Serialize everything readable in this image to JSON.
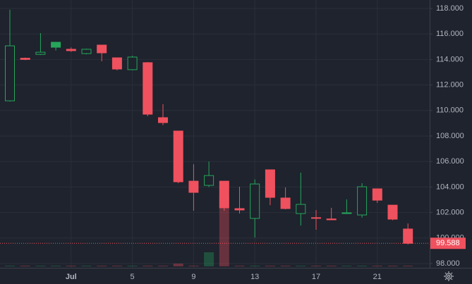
{
  "chart_data": {
    "type": "candlestick",
    "categories": [
      null,
      null,
      null,
      null,
      "Jul",
      null,
      null,
      null,
      "5",
      null,
      null,
      null,
      "9",
      null,
      null,
      null,
      "13",
      null,
      null,
      null,
      "17",
      null,
      null,
      null,
      "21",
      null,
      null
    ],
    "open": [
      110.76,
      114.1,
      114.4,
      115.35,
      114.8,
      114.46,
      115.13,
      114.13,
      113.2,
      113.75,
      109.44,
      108.39,
      104.46,
      104.13,
      104.46,
      102.31,
      101.54,
      105.35,
      103.14,
      101.92,
      101.6,
      101.5,
      101.98,
      101.81,
      103.86,
      102.58,
      100.71
    ],
    "high": [
      117.9,
      114.15,
      116.07,
      115.35,
      114.95,
      114.85,
      115.13,
      114.13,
      114.3,
      113.8,
      110.5,
      108.4,
      105.79,
      106.0,
      104.46,
      104.02,
      104.6,
      105.35,
      103.97,
      105.13,
      102.2,
      102.37,
      103.03,
      104.3,
      103.86,
      102.58,
      101.15
    ],
    "low": [
      110.7,
      113.95,
      114.35,
      114.7,
      114.6,
      114.4,
      113.86,
      113.15,
      113.15,
      109.55,
      108.85,
      104.3,
      102.14,
      104.0,
      102.14,
      101.92,
      100.04,
      102.58,
      102.25,
      100.98,
      100.65,
      101.4,
      101.9,
      101.6,
      102.75,
      101.4,
      99.5
    ],
    "close": [
      115.07,
      114.0,
      114.57,
      114.96,
      114.69,
      114.8,
      114.52,
      113.25,
      114.19,
      109.71,
      109.05,
      104.41,
      103.58,
      104.9,
      102.37,
      102.2,
      104.24,
      103.19,
      102.31,
      102.64,
      101.55,
      101.43,
      101.92,
      104.02,
      102.97,
      101.48,
      99.588
    ],
    "volume": [
      1,
      1,
      1,
      1,
      1,
      1,
      1,
      1,
      1,
      1,
      1,
      4,
      1,
      20,
      100,
      1,
      1,
      1,
      1,
      1,
      1,
      1,
      1,
      1,
      1,
      1,
      1
    ],
    "up_color": "#26a65b",
    "down_color": "#f0515e",
    "ylim": [
      98,
      118
    ],
    "yticks": [
      {
        "value": 98,
        "label": "98.000"
      },
      {
        "value": 100,
        "label": "100.000"
      },
      {
        "value": 102,
        "label": "102.000"
      },
      {
        "value": 104,
        "label": "104.000"
      },
      {
        "value": 106,
        "label": "106.000"
      },
      {
        "value": 108,
        "label": "108.000"
      },
      {
        "value": 110,
        "label": "110.000"
      },
      {
        "value": 112,
        "label": "112.000"
      },
      {
        "value": 114,
        "label": "114.000"
      },
      {
        "value": 116,
        "label": "116.000"
      },
      {
        "value": 118,
        "label": "118.000"
      }
    ],
    "last_price": 99.588,
    "grid": true
  }
}
